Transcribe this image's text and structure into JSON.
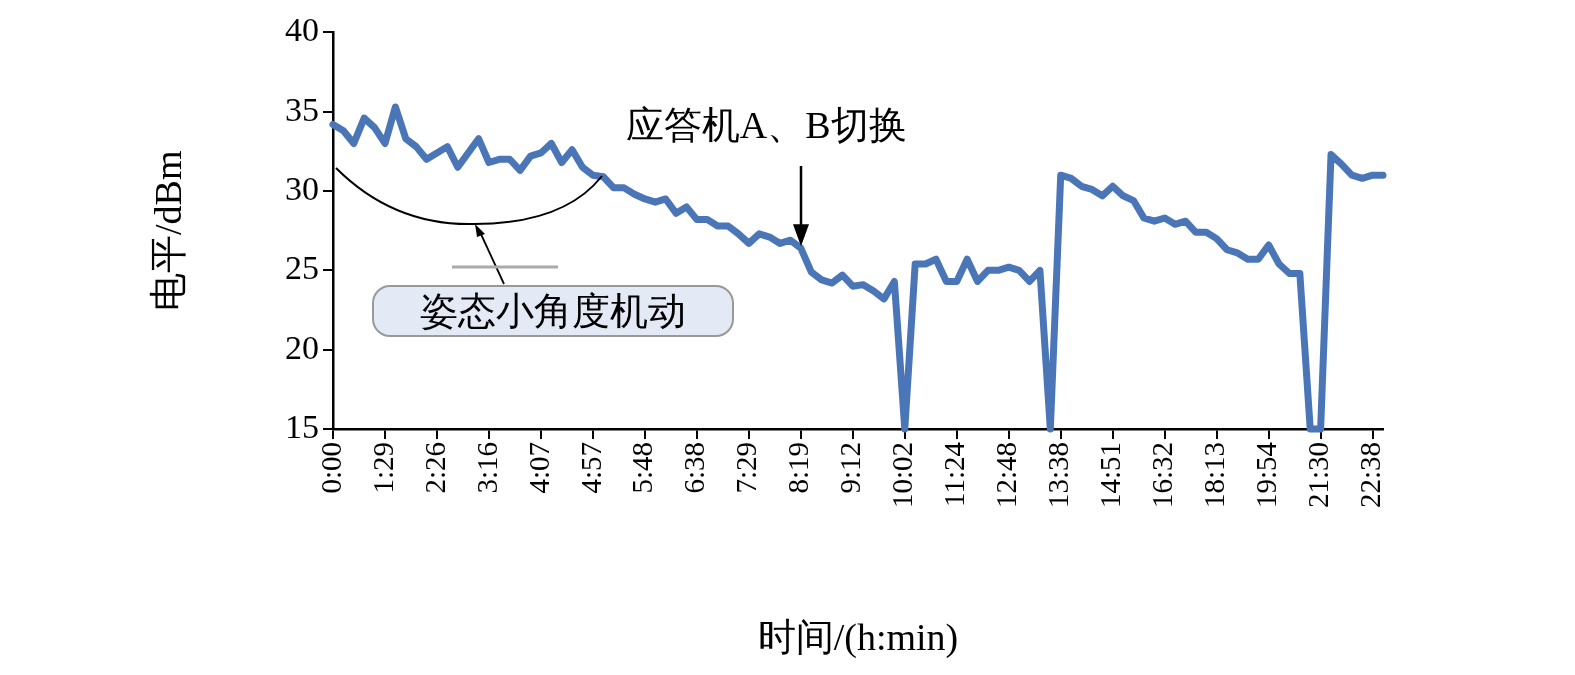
{
  "chart_data": {
    "type": "line",
    "xlabel": "时间/(h:min)",
    "ylabel": "电平/dBm",
    "categories": [
      "0:00",
      null,
      null,
      null,
      null,
      "1:29",
      null,
      null,
      null,
      null,
      "2:26",
      null,
      null,
      null,
      null,
      "3:16",
      null,
      null,
      null,
      null,
      "4:07",
      null,
      null,
      null,
      null,
      "4:57",
      null,
      null,
      null,
      null,
      "5:48",
      null,
      null,
      null,
      null,
      "6:38",
      null,
      null,
      null,
      null,
      "7:29",
      null,
      null,
      null,
      null,
      "8:19",
      null,
      null,
      null,
      null,
      "9:12",
      null,
      null,
      null,
      null,
      "10:02",
      null,
      null,
      null,
      null,
      "11:24",
      null,
      null,
      null,
      null,
      "12:48",
      null,
      null,
      null,
      null,
      "13:38",
      null,
      null,
      null,
      null,
      "14:51",
      null,
      null,
      null,
      null,
      "16:32",
      null,
      null,
      null,
      null,
      "18:13",
      null,
      null,
      null,
      null,
      "19:54",
      null,
      null,
      null,
      null,
      "21:30",
      null,
      null,
      null,
      null,
      "22:38",
      null
    ],
    "series": [
      {
        "color": "#4a76b8",
        "values": [
          34.2,
          33.8,
          33,
          34.6,
          34,
          33,
          35.3,
          33.3,
          32.8,
          32,
          32.4,
          32.8,
          31.5,
          32.4,
          33.3,
          31.8,
          32,
          32,
          31.3,
          32.2,
          32.4,
          33,
          31.8,
          32.6,
          31.5,
          31,
          30.9,
          30.2,
          30.2,
          29.8,
          29.5,
          29.3,
          29.5,
          28.6,
          29,
          28.2,
          28.2,
          27.8,
          27.8,
          27.3,
          26.7,
          27.3,
          27.1,
          26.7,
          26.9,
          26.4,
          24.9,
          24.4,
          24.2,
          24.7,
          24,
          24.1,
          23.7,
          23.2,
          24.3,
          15,
          25.4,
          25.4,
          25.7,
          24.3,
          24.3,
          25.7,
          24.3,
          25,
          25,
          25.2,
          25,
          24.3,
          25,
          15,
          31,
          30.8,
          30.3,
          30.1,
          29.7,
          30.3,
          29.7,
          29.4,
          28.3,
          28.1,
          28.3,
          27.9,
          28.1,
          27.4,
          27.4,
          27,
          26.3,
          26.1,
          25.7,
          25.7,
          26.6,
          25.4,
          24.8,
          24.8,
          15,
          15,
          32.3,
          31.7,
          31,
          30.8,
          31,
          31
        ]
      }
    ],
    "ylim": [
      15,
      40
    ],
    "yticks": [
      15,
      20,
      25,
      30,
      35,
      40
    ],
    "grid": false,
    "legend": false,
    "marker": "none",
    "line_style": "solid",
    "annotations": [
      {
        "text": "应答机A、B切换",
        "x": "8:19",
        "y": 26.4
      },
      "姿态小角度机动"
    ]
  }
}
